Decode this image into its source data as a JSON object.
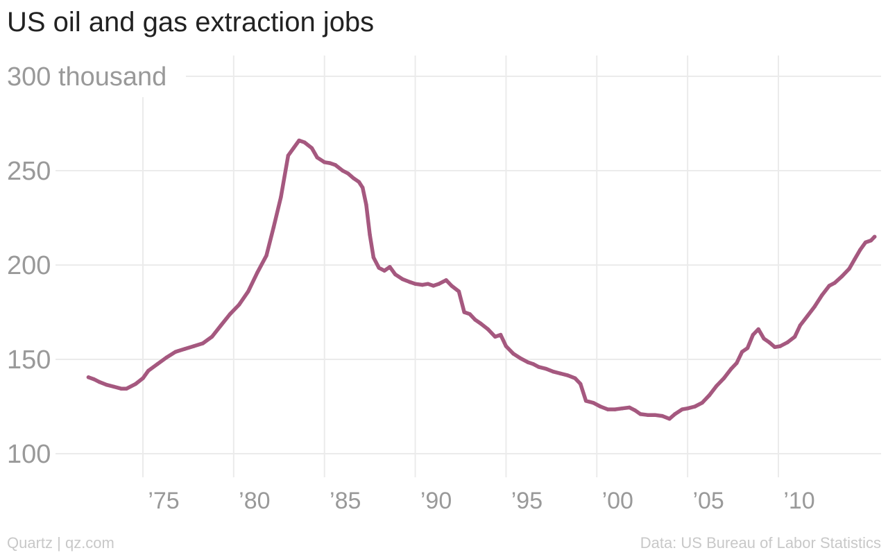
{
  "title": "US oil and gas extraction jobs",
  "footer": {
    "source_left": "Quartz | qz.com",
    "source_right": "Data: US Bureau of Labor Statistics"
  },
  "colors": {
    "line": "#a5587f",
    "grid": "#ebebeb",
    "tick_text": "#999999",
    "footer_text": "#c8c8c8",
    "title_text": "#222222"
  },
  "chart_data": {
    "type": "line",
    "title": "US oil and gas extraction jobs",
    "xlabel": "",
    "ylabel": "",
    "xlim": [
      1969.5,
      2016.5
    ],
    "ylim": [
      100,
      300
    ],
    "grid": true,
    "y_ticks": [
      {
        "value": 300,
        "label": "300 thousand"
      },
      {
        "value": 250,
        "label": "250"
      },
      {
        "value": 200,
        "label": "200"
      },
      {
        "value": 150,
        "label": "150"
      },
      {
        "value": 100,
        "label": "100"
      }
    ],
    "x_ticks": [
      {
        "value": 1975,
        "label": "’75"
      },
      {
        "value": 1980,
        "label": "’80"
      },
      {
        "value": 1985,
        "label": "’85"
      },
      {
        "value": 1990,
        "label": "’90"
      },
      {
        "value": 1995,
        "label": "’95"
      },
      {
        "value": 2000,
        "label": "’00"
      },
      {
        "value": 2005,
        "label": "’05"
      },
      {
        "value": 2010,
        "label": "’10"
      }
    ],
    "series": [
      {
        "points": [
          [
            1972.0,
            140.5
          ],
          [
            1972.3,
            139.5
          ],
          [
            1972.6,
            138
          ],
          [
            1973.0,
            136.5
          ],
          [
            1973.4,
            135.5
          ],
          [
            1973.8,
            134.5
          ],
          [
            1974.1,
            134.5
          ],
          [
            1974.6,
            137
          ],
          [
            1975.0,
            140
          ],
          [
            1975.3,
            144
          ],
          [
            1975.8,
            147.5
          ],
          [
            1976.3,
            151
          ],
          [
            1976.8,
            154
          ],
          [
            1977.3,
            155.5
          ],
          [
            1977.8,
            157
          ],
          [
            1978.3,
            158.5
          ],
          [
            1978.8,
            162
          ],
          [
            1979.3,
            168
          ],
          [
            1979.8,
            174
          ],
          [
            1980.3,
            179
          ],
          [
            1980.8,
            186
          ],
          [
            1981.3,
            196
          ],
          [
            1981.8,
            205
          ],
          [
            1982.2,
            220
          ],
          [
            1982.6,
            236
          ],
          [
            1983.0,
            258
          ],
          [
            1983.3,
            262
          ],
          [
            1983.6,
            266
          ],
          [
            1983.9,
            265
          ],
          [
            1984.3,
            262
          ],
          [
            1984.6,
            257
          ],
          [
            1985.0,
            254.5
          ],
          [
            1985.3,
            254
          ],
          [
            1985.6,
            253
          ],
          [
            1986.0,
            250
          ],
          [
            1986.3,
            248.5
          ],
          [
            1986.6,
            246
          ],
          [
            1986.9,
            244
          ],
          [
            1987.1,
            241
          ],
          [
            1987.3,
            232
          ],
          [
            1987.5,
            216
          ],
          [
            1987.7,
            204
          ],
          [
            1988.0,
            198.5
          ],
          [
            1988.3,
            197
          ],
          [
            1988.6,
            199
          ],
          [
            1988.9,
            195
          ],
          [
            1989.3,
            192.5
          ],
          [
            1989.7,
            191
          ],
          [
            1990.0,
            190
          ],
          [
            1990.4,
            189.5
          ],
          [
            1990.7,
            190
          ],
          [
            1991.0,
            189
          ],
          [
            1991.3,
            190
          ],
          [
            1991.7,
            192
          ],
          [
            1992.0,
            189
          ],
          [
            1992.4,
            186
          ],
          [
            1992.7,
            175
          ],
          [
            1993.0,
            174
          ],
          [
            1993.3,
            171
          ],
          [
            1993.6,
            169
          ],
          [
            1994.0,
            166
          ],
          [
            1994.4,
            162
          ],
          [
            1994.7,
            163
          ],
          [
            1995.0,
            157
          ],
          [
            1995.4,
            153
          ],
          [
            1995.8,
            150.5
          ],
          [
            1996.2,
            148.5
          ],
          [
            1996.5,
            147.5
          ],
          [
            1996.8,
            146
          ],
          [
            1997.2,
            145
          ],
          [
            1997.6,
            143.5
          ],
          [
            1998.0,
            142.5
          ],
          [
            1998.4,
            141.5
          ],
          [
            1998.8,
            140
          ],
          [
            1999.1,
            137
          ],
          [
            1999.4,
            128
          ],
          [
            1999.8,
            127
          ],
          [
            2000.2,
            125
          ],
          [
            2000.6,
            123.5
          ],
          [
            2001.0,
            123.5
          ],
          [
            2001.4,
            124
          ],
          [
            2001.8,
            124.5
          ],
          [
            2002.1,
            123
          ],
          [
            2002.4,
            121
          ],
          [
            2002.8,
            120.5
          ],
          [
            2003.2,
            120.5
          ],
          [
            2003.6,
            120
          ],
          [
            2004.0,
            118.5
          ],
          [
            2004.3,
            121
          ],
          [
            2004.7,
            123.5
          ],
          [
            2005.0,
            124
          ],
          [
            2005.4,
            125
          ],
          [
            2005.8,
            127
          ],
          [
            2006.2,
            131
          ],
          [
            2006.6,
            136
          ],
          [
            2007.0,
            140
          ],
          [
            2007.4,
            145
          ],
          [
            2007.7,
            148
          ],
          [
            2008.0,
            154
          ],
          [
            2008.3,
            156
          ],
          [
            2008.6,
            163
          ],
          [
            2008.9,
            166
          ],
          [
            2009.2,
            161
          ],
          [
            2009.5,
            159
          ],
          [
            2009.8,
            156.5
          ],
          [
            2010.1,
            157
          ],
          [
            2010.5,
            159
          ],
          [
            2010.9,
            162
          ],
          [
            2011.2,
            168
          ],
          [
            2011.6,
            173
          ],
          [
            2012.0,
            178
          ],
          [
            2012.4,
            184
          ],
          [
            2012.8,
            189
          ],
          [
            2013.1,
            190.5
          ],
          [
            2013.5,
            194
          ],
          [
            2013.9,
            198
          ],
          [
            2014.2,
            203
          ],
          [
            2014.5,
            208
          ],
          [
            2014.8,
            212
          ],
          [
            2015.1,
            213
          ],
          [
            2015.3,
            215
          ]
        ]
      }
    ]
  }
}
